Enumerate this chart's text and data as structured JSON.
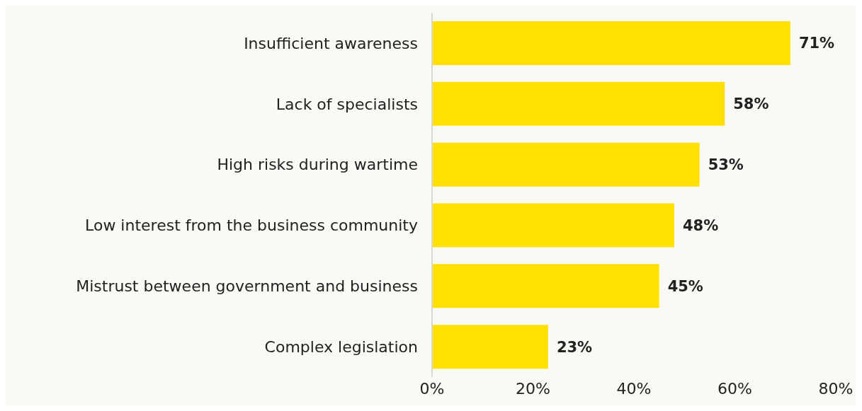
{
  "chart_data": {
    "type": "bar",
    "orientation": "horizontal",
    "categories": [
      "Insufficient awareness",
      "Lack of specialists",
      "High risks during wartime",
      "Low interest from the business community",
      "Mistrust between government and business",
      "Complex legislation"
    ],
    "values": [
      71,
      58,
      53,
      48,
      45,
      23
    ],
    "value_labels": [
      "71%",
      "58%",
      "53%",
      "48%",
      "45%",
      "23%"
    ],
    "color": "#ffe000",
    "xlim": [
      0,
      80
    ],
    "xticks": [
      {
        "value": 0,
        "label": "0%"
      },
      {
        "value": 20,
        "label": "20%"
      },
      {
        "value": 40,
        "label": "40%"
      },
      {
        "value": 60,
        "label": "60%"
      },
      {
        "value": 80,
        "label": "80%"
      }
    ]
  }
}
